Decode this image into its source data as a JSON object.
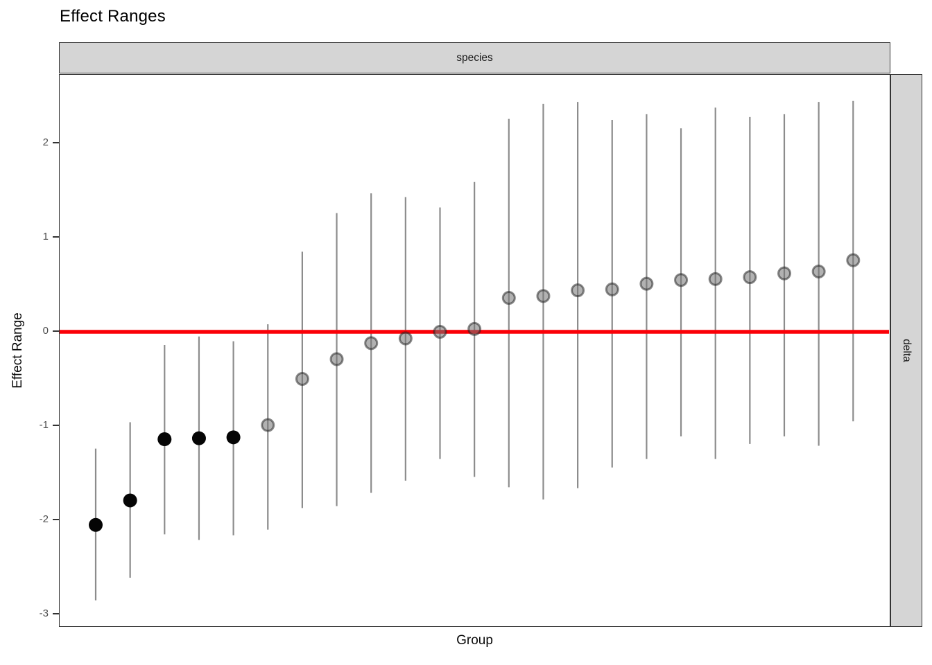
{
  "chart_data": {
    "type": "scatter",
    "subtype": "pointrange-errorbar",
    "title": "Effect Ranges",
    "xlabel": "Group",
    "ylabel": "Effect Range",
    "facet_top": "species",
    "facet_right": "delta",
    "grid": false,
    "legend": "none",
    "x_tick_labels_shown": false,
    "ylim": [
      -3.14,
      2.73
    ],
    "ytick_values": [
      2,
      1,
      0,
      -1,
      -2,
      -3
    ],
    "ytick_labels": [
      "2",
      "1",
      "0",
      "-1",
      "-2",
      "-3"
    ],
    "reference_line": {
      "y": 0,
      "color": "#fb0007"
    },
    "colors": {
      "errorbar": "#8c8c8c",
      "significant_point": "#050505",
      "nonsig_fill": "rgba(115,115,115,0.55)",
      "nonsig_ring": "rgba(25,25,25,0.5)",
      "strip_fill": "#d5d5d5",
      "panel_border": "#333333",
      "tick_label": "#4d4d4d"
    },
    "points": [
      {
        "group": 1,
        "estimate": -2.05,
        "lower": -2.85,
        "upper": -1.24,
        "significant": true
      },
      {
        "group": 2,
        "estimate": -1.79,
        "lower": -2.61,
        "upper": -0.96,
        "significant": true
      },
      {
        "group": 3,
        "estimate": -1.14,
        "lower": -2.15,
        "upper": -0.14,
        "significant": true
      },
      {
        "group": 4,
        "estimate": -1.13,
        "lower": -2.21,
        "upper": -0.05,
        "significant": true
      },
      {
        "group": 5,
        "estimate": -1.12,
        "lower": -2.16,
        "upper": -0.1,
        "significant": true
      },
      {
        "group": 6,
        "estimate": -0.99,
        "lower": -2.1,
        "upper": 0.08,
        "significant": false
      },
      {
        "group": 7,
        "estimate": -0.5,
        "lower": -1.87,
        "upper": 0.85,
        "significant": false
      },
      {
        "group": 8,
        "estimate": -0.29,
        "lower": -1.85,
        "upper": 1.26,
        "significant": false
      },
      {
        "group": 9,
        "estimate": -0.12,
        "lower": -1.71,
        "upper": 1.47,
        "significant": false
      },
      {
        "group": 10,
        "estimate": -0.07,
        "lower": -1.58,
        "upper": 1.43,
        "significant": false
      },
      {
        "group": 11,
        "estimate": 0.0,
        "lower": -1.35,
        "upper": 1.32,
        "significant": false
      },
      {
        "group": 12,
        "estimate": 0.03,
        "lower": -1.54,
        "upper": 1.59,
        "significant": false
      },
      {
        "group": 13,
        "estimate": 0.36,
        "lower": -1.65,
        "upper": 2.26,
        "significant": false
      },
      {
        "group": 14,
        "estimate": 0.38,
        "lower": -1.78,
        "upper": 2.42,
        "significant": false
      },
      {
        "group": 15,
        "estimate": 0.44,
        "lower": -1.66,
        "upper": 2.44,
        "significant": false
      },
      {
        "group": 16,
        "estimate": 0.45,
        "lower": -1.44,
        "upper": 2.25,
        "significant": false
      },
      {
        "group": 17,
        "estimate": 0.51,
        "lower": -1.35,
        "upper": 2.31,
        "significant": false
      },
      {
        "group": 18,
        "estimate": 0.55,
        "lower": -1.11,
        "upper": 2.16,
        "significant": false
      },
      {
        "group": 19,
        "estimate": 0.56,
        "lower": -1.35,
        "upper": 2.38,
        "significant": false
      },
      {
        "group": 20,
        "estimate": 0.58,
        "lower": -1.19,
        "upper": 2.28,
        "significant": false
      },
      {
        "group": 21,
        "estimate": 0.62,
        "lower": -1.11,
        "upper": 2.31,
        "significant": false
      },
      {
        "group": 22,
        "estimate": 0.64,
        "lower": -1.21,
        "upper": 2.44,
        "significant": false
      },
      {
        "group": 23,
        "estimate": 0.76,
        "lower": -0.95,
        "upper": 2.45,
        "significant": false
      }
    ]
  }
}
